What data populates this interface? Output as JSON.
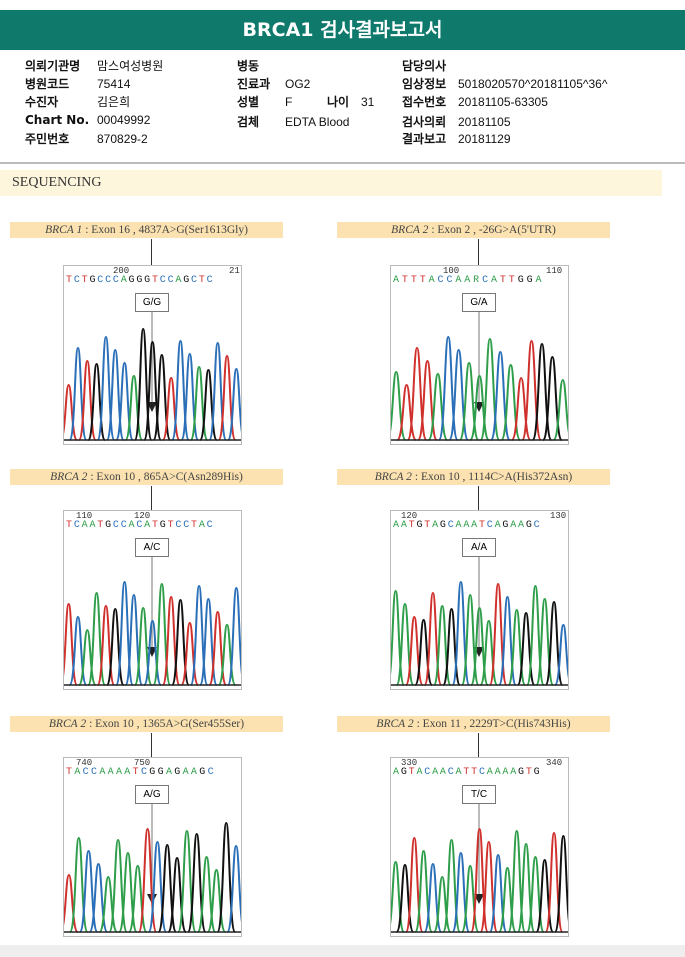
{
  "header": {
    "title": "BRCA1 검사결과보고서"
  },
  "info": {
    "col1": [
      {
        "k": "의뢰기관명",
        "v": "맘스여성병원"
      },
      {
        "k": "병원코드",
        "v": "75414"
      },
      {
        "k": "수진자",
        "v": "김은희"
      },
      {
        "k": "Chart No.",
        "v": "00049992"
      },
      {
        "k": "주민번호",
        "v": "870829-2"
      }
    ],
    "col2": [
      {
        "k": "병동",
        "v": ""
      },
      {
        "k": "진료과",
        "v": "OG2"
      },
      {
        "k": "성별",
        "v": "F"
      },
      {
        "k": "검체",
        "v": "EDTA Blood"
      }
    ],
    "age": {
      "k": "나이",
      "v": "31"
    },
    "col3": [
      {
        "k": "담당의사",
        "v": ""
      },
      {
        "k": "임상정보",
        "v": "5018020570^20181105^36^"
      },
      {
        "k": "접수번호",
        "v": "20181105-63305"
      },
      {
        "k": "검사의뢰",
        "v": "20181105"
      },
      {
        "k": "결과보고",
        "v": "20181129"
      }
    ]
  },
  "section": "SEQUENCING",
  "colors": {
    "A": "#2e9e4a",
    "C": "#2a6fb8",
    "G": "#111111",
    "T": "#d0312d"
  },
  "panels": [
    {
      "gene": "BRCA 1",
      "desc": ": Exon 16 , 4837A>G(Ser1613Gly)",
      "ticks": [
        "200",
        "21"
      ],
      "seq": "TCTGCCCAGGGTCCAGCTC",
      "gt": "G/G"
    },
    {
      "gene": "BRCA 2",
      "desc": ": Exon 2 , -26G>A(5'UTR)",
      "ticks": [
        "100",
        "110"
      ],
      "seq": "ATTTACCAARCATTGGA",
      "gt": "G/A"
    },
    {
      "gene": "BRCA 2",
      "desc": ": Exon 10 , 865A>C(Asn289His)",
      "ticks": [
        "110",
        "120"
      ],
      "seq": "TCAATGCCACATGTCCTAC",
      "gt": "A/C"
    },
    {
      "gene": "BRCA 2",
      "desc": ": Exon 10 , 1114C>A(His372Asn)",
      "ticks": [
        "120",
        "130"
      ],
      "seq": "AATGTAGCAAATCAGAAGC",
      "gt": "A/A"
    },
    {
      "gene": "BRCA 2",
      "desc": ": Exon 10 , 1365A>G(Ser455Ser)",
      "ticks": [
        "740",
        "750"
      ],
      "seq": "TACCAAAATCGGAGAAGC",
      "gt": "A/G"
    },
    {
      "gene": "BRCA 2",
      "desc": ": Exon 11 , 2229T>C(His743His)",
      "ticks": [
        "330",
        "340"
      ],
      "seq": "AGTACAACATTCAAAAGTG",
      "gt": "T/C"
    }
  ]
}
